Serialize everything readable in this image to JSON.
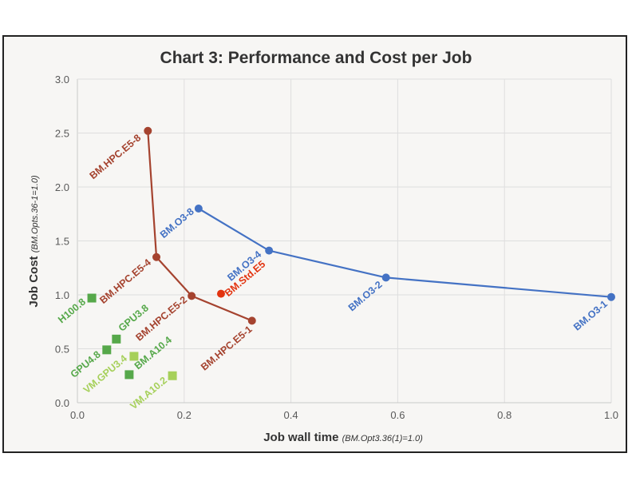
{
  "chart_data": {
    "type": "scatter",
    "title": "Chart 3: Performance and Cost per Job",
    "xlabel": "Job wall time",
    "xlabel_note": "(BM.Opt3.36(1)=1.0)",
    "ylabel": "Job Cost",
    "ylabel_note": "(BM.Opts.36-1=1.0)",
    "xlim": [
      0,
      1.0
    ],
    "ylim": [
      0,
      3.0
    ],
    "x_ticks": [
      "0.0",
      "0.2",
      "0.4",
      "0.6",
      "0.8",
      "1.0"
    ],
    "y_ticks": [
      "0.0",
      "0.5",
      "1.0",
      "1.5",
      "2.0",
      "2.5",
      "3.0"
    ],
    "grid": true,
    "series": [
      {
        "color": "#a5432f",
        "marker": "circle",
        "line": true,
        "points": [
          {
            "label": "BM.HPC.E5-8",
            "x": 0.132,
            "y": 2.52
          },
          {
            "label": "BM.HPC.E5-4",
            "x": 0.148,
            "y": 1.35
          },
          {
            "label": "BM.HPC.E5-2",
            "x": 0.214,
            "y": 0.99
          },
          {
            "label": "BM.HPC.E5-1",
            "x": 0.327,
            "y": 0.76
          }
        ]
      },
      {
        "color": "#4472c4",
        "marker": "circle",
        "line": true,
        "points": [
          {
            "label": "BM.O3-8",
            "x": 0.227,
            "y": 1.8
          },
          {
            "label": "BM.O3-4",
            "x": 0.359,
            "y": 1.41
          },
          {
            "label": "BM.O3-2",
            "x": 0.578,
            "y": 1.16
          },
          {
            "label": "BM.O3-1",
            "x": 1.0,
            "y": 0.98
          }
        ]
      },
      {
        "color": "#e2330f",
        "marker": "circle",
        "line": false,
        "points": [
          {
            "label": "BM.Std.E5",
            "x": 0.269,
            "y": 1.01
          }
        ]
      },
      {
        "color": "#56a84a",
        "marker": "square",
        "line": false,
        "points": [
          {
            "label": "H100.8",
            "x": 0.027,
            "y": 0.97
          },
          {
            "label": "GPU3.8",
            "x": 0.073,
            "y": 0.59
          },
          {
            "label": "GPU4.8",
            "x": 0.055,
            "y": 0.49
          },
          {
            "label": "BM.A10.4",
            "x": 0.097,
            "y": 0.26
          }
        ]
      },
      {
        "color": "#a6d05a",
        "marker": "square",
        "line": false,
        "points": [
          {
            "label": "VM.GPU3.4",
            "x": 0.106,
            "y": 0.43
          },
          {
            "label": "VM.A10.2",
            "x": 0.178,
            "y": 0.25
          }
        ]
      }
    ]
  }
}
